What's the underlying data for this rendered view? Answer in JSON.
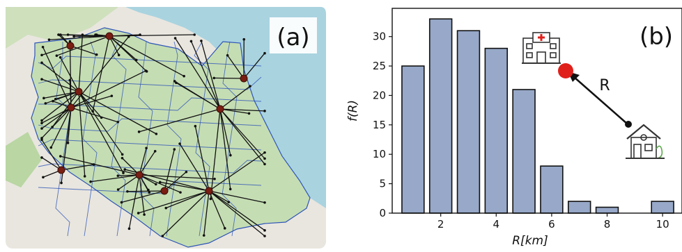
{
  "panel_a": {
    "label": "(a)",
    "colors": {
      "sea": "#a9d3df",
      "land": "#e9e6df",
      "city": "#c5ddb3",
      "park": "#8fc28a",
      "boundary": "#2e55b7",
      "link": "#111111",
      "hub": "#7a1d12"
    }
  },
  "chart_data": {
    "type": "bar",
    "label": "(b)",
    "bars": [
      {
        "x": 1,
        "value": 25
      },
      {
        "x": 2,
        "value": 33
      },
      {
        "x": 3,
        "value": 31
      },
      {
        "x": 4,
        "value": 28
      },
      {
        "x": 5,
        "value": 21
      },
      {
        "x": 6,
        "value": 8
      },
      {
        "x": 7,
        "value": 2
      },
      {
        "x": 8,
        "value": 1
      },
      {
        "x": 10,
        "value": 2
      }
    ],
    "bar_width": 0.8,
    "xlabel": "R[km]",
    "ylabel": "f(R)",
    "xticks": [
      "2",
      "4",
      "6",
      "8",
      "10"
    ],
    "xtick_values": [
      2,
      4,
      6,
      8,
      10
    ],
    "yticks": [
      "0",
      "5",
      "10",
      "15",
      "20",
      "25",
      "30"
    ],
    "ytick_values": [
      0,
      5,
      10,
      15,
      20,
      25,
      30
    ],
    "xlim": [
      0.25,
      10.7
    ],
    "ylim": [
      0,
      34.8
    ],
    "grid": false,
    "bar_color": "#97a8c8",
    "edge_color": "#111111",
    "inset": {
      "distance_label": "R",
      "icons": [
        "hospital-icon",
        "house-icon"
      ],
      "marker_color": "#e0201b"
    }
  }
}
